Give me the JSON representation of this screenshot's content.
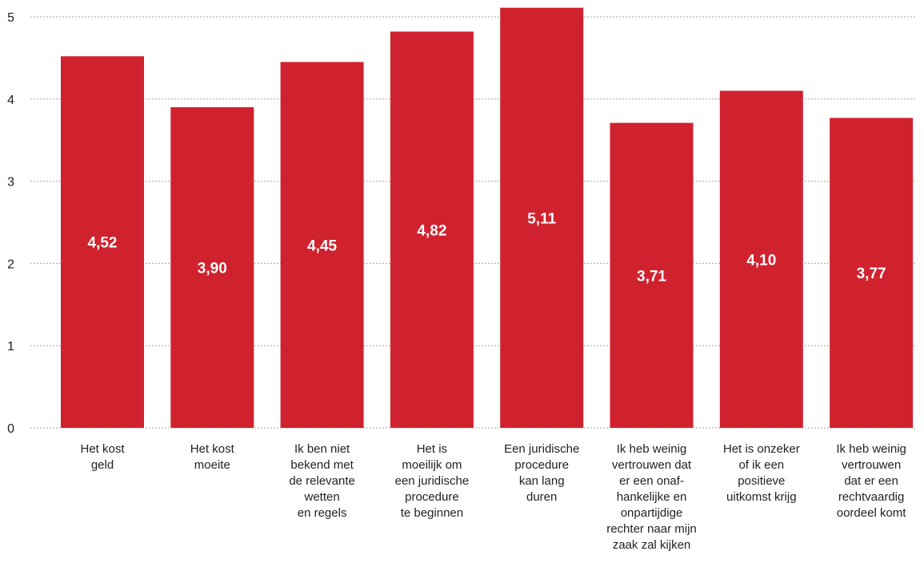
{
  "chart_data": {
    "type": "bar",
    "title": "",
    "xlabel": "",
    "ylabel": "",
    "ylim": [
      0,
      5
    ],
    "yticks": [
      "0",
      "1",
      "2",
      "3",
      "4",
      "5"
    ],
    "grid": true,
    "bar_color": "#d0222e",
    "label_color": "#ffffff",
    "categories": [
      [
        "Het kost",
        "geld"
      ],
      [
        "Het kost",
        "moeite"
      ],
      [
        "Ik ben niet",
        "bekend met",
        "de relevante",
        "wetten",
        "en regels"
      ],
      [
        "Het is",
        "moeilijk om",
        "een juridische",
        "procedure",
        "te beginnen"
      ],
      [
        "Een juridische",
        "procedure",
        "kan lang",
        "duren"
      ],
      [
        "Ik heb weinig",
        "vertrouwen dat",
        "er een onaf-",
        "hankelijke en",
        "onpartijdige",
        "rechter naar mijn",
        "zaak zal kijken"
      ],
      [
        "Het is onzeker",
        "of ik een",
        "positieve",
        "uitkomst krijg"
      ],
      [
        "Ik heb weinig",
        "vertrouwen",
        "dat er een",
        "rechtvaardig",
        "oordeel komt"
      ]
    ],
    "values": [
      4.52,
      3.9,
      4.45,
      4.82,
      5.11,
      3.71,
      4.1,
      3.77
    ],
    "data_labels": [
      "4,52",
      "3,90",
      "4,45",
      "4,82",
      "5,11",
      "3,71",
      "4,10",
      "3,77"
    ]
  }
}
